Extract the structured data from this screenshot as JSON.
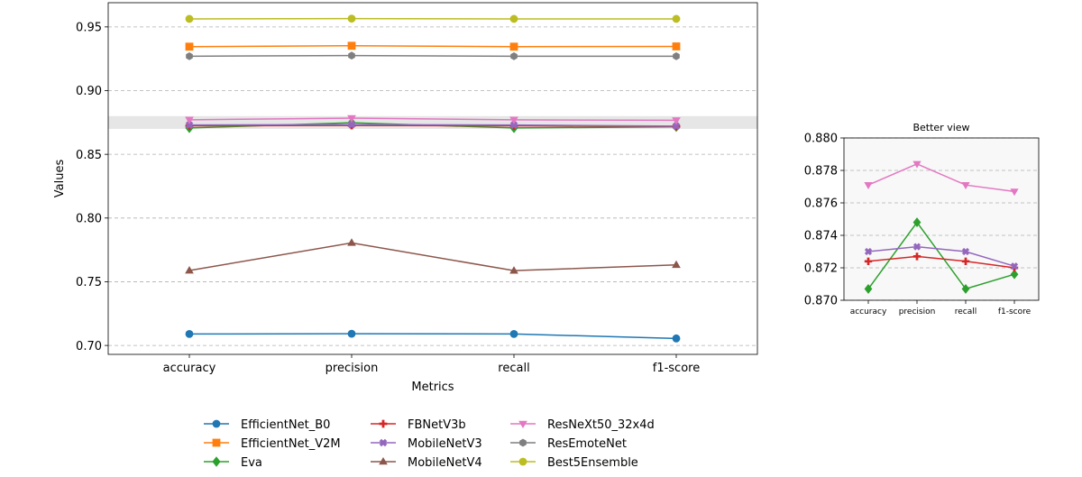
{
  "chart_data": [
    {
      "type": "line",
      "categories": [
        "accuracy",
        "precision",
        "recall",
        "f1-score"
      ],
      "xlabel": "Metrics",
      "ylabel": "Values",
      "ylim": [
        0.693,
        0.969
      ],
      "yticks": [
        0.7,
        0.75,
        0.8,
        0.85,
        0.9,
        0.95
      ],
      "grid": "y-dashed",
      "highlight_band": [
        0.87,
        0.88
      ],
      "legend_position": "bottom-center",
      "series": [
        {
          "name": "EfficientNet_B0",
          "color": "#1f77b4",
          "marker": "circle",
          "values": [
            0.709,
            0.7092,
            0.709,
            0.7055
          ]
        },
        {
          "name": "EfficientNet_V2M",
          "color": "#ff7f0e",
          "marker": "square",
          "values": [
            0.9345,
            0.9352,
            0.9345,
            0.9347
          ]
        },
        {
          "name": "Eva",
          "color": "#2ca02c",
          "marker": "diamond",
          "values": [
            0.8707,
            0.8748,
            0.8707,
            0.8716
          ]
        },
        {
          "name": "FBNetV3b",
          "color": "#d62728",
          "marker": "plus",
          "values": [
            0.8724,
            0.8727,
            0.8724,
            0.872
          ]
        },
        {
          "name": "MobileNetV3",
          "color": "#9467bd",
          "marker": "x",
          "values": [
            0.873,
            0.8733,
            0.873,
            0.8721
          ]
        },
        {
          "name": "MobileNetV4",
          "color": "#8c564b",
          "marker": "triangle-up",
          "values": [
            0.7588,
            0.7805,
            0.7587,
            0.7632
          ]
        },
        {
          "name": "ResNeXt50_32x4d",
          "color": "#e377c2",
          "marker": "triangle-down",
          "values": [
            0.8771,
            0.8784,
            0.8771,
            0.8767
          ]
        },
        {
          "name": "ResEmoteNet",
          "color": "#7f7f7f",
          "marker": "hexagon",
          "values": [
            0.927,
            0.9275,
            0.927,
            0.927
          ]
        },
        {
          "name": "Best5Ensemble",
          "color": "#bcbd22",
          "marker": "circle",
          "values": [
            0.9563,
            0.9565,
            0.9563,
            0.9563
          ]
        }
      ]
    },
    {
      "type": "line",
      "title": "Better view",
      "categories": [
        "accuracy",
        "precision",
        "recall",
        "f1-score"
      ],
      "ylim": [
        0.87,
        0.88
      ],
      "yticks": [
        0.87,
        0.872,
        0.874,
        0.876,
        0.878,
        0.88
      ],
      "grid": "y-dashed",
      "background": "#f8f8f8",
      "series": [
        {
          "name": "Eva",
          "color": "#2ca02c",
          "marker": "diamond",
          "values": [
            0.8707,
            0.8748,
            0.8707,
            0.8716
          ]
        },
        {
          "name": "FBNetV3b",
          "color": "#d62728",
          "marker": "plus",
          "values": [
            0.8724,
            0.8727,
            0.8724,
            0.872
          ]
        },
        {
          "name": "MobileNetV3",
          "color": "#9467bd",
          "marker": "x",
          "values": [
            0.873,
            0.8733,
            0.873,
            0.8721
          ]
        },
        {
          "name": "ResNeXt50_32x4d",
          "color": "#e377c2",
          "marker": "triangle-down",
          "values": [
            0.8771,
            0.8784,
            0.8771,
            0.8767
          ]
        }
      ]
    }
  ]
}
